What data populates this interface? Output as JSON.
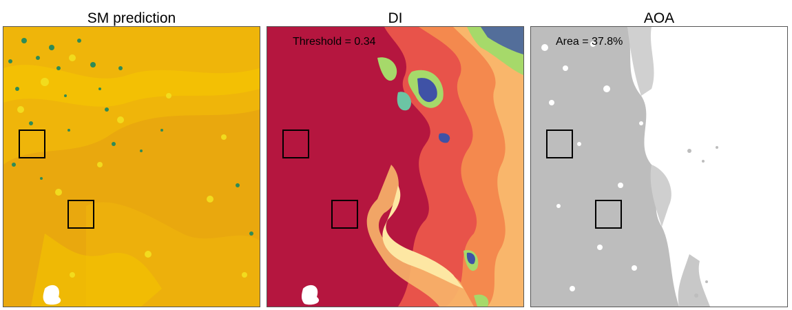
{
  "panels": [
    {
      "title": "SM prediction"
    },
    {
      "title": "DI",
      "annotation": "Threshold = 0.34"
    },
    {
      "title": "AOA",
      "annotation": "Area = 37.8%"
    }
  ],
  "colors": {
    "sm_base": "#e8a80c",
    "sm_light": "#f5c200",
    "sm_yellow": "#f2e020",
    "sm_green": "#2e8b57",
    "di_low": "#b5163f",
    "di_mid": "#e8534a",
    "di_high": "#f7b56a",
    "di_pale": "#fde7a3",
    "di_green": "#a6d96a",
    "di_blue": "#3f52a6",
    "aoa_gray": "#bdbdbd",
    "aoa_white": "#ffffff"
  }
}
